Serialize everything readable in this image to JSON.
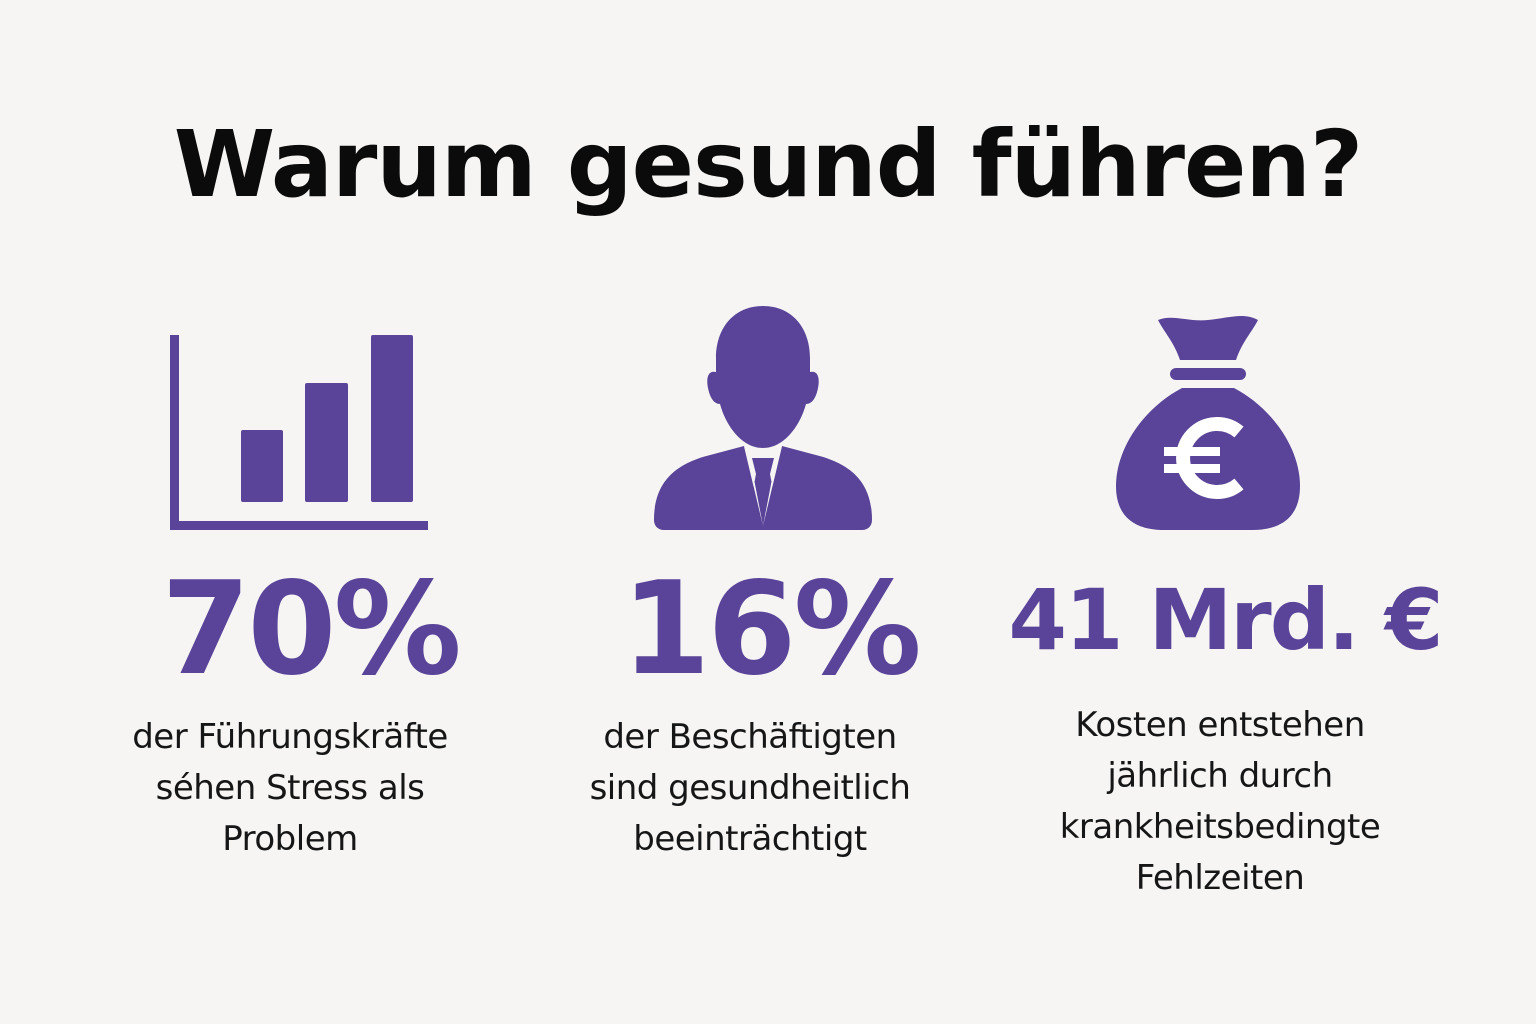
{
  "title": "Warum gesund führen?",
  "accent_color": "#5a4499",
  "stats": [
    {
      "value": "70%",
      "icon": "bar-chart-icon",
      "lines": [
        "der Führungskräfte",
        "séhen Stress als",
        "Problem"
      ]
    },
    {
      "value": "16%",
      "icon": "person-icon",
      "lines": [
        "der Beschäftigten",
        "sind gesundheitlich",
        "beeinträchtigt"
      ]
    },
    {
      "value": "41 Mrd. €",
      "icon": "money-bag-euro-icon",
      "lines": [
        "Kosten entstehen",
        "jährlich durch",
        "krankheitsbedingte",
        "Fehlzeiten"
      ]
    }
  ]
}
